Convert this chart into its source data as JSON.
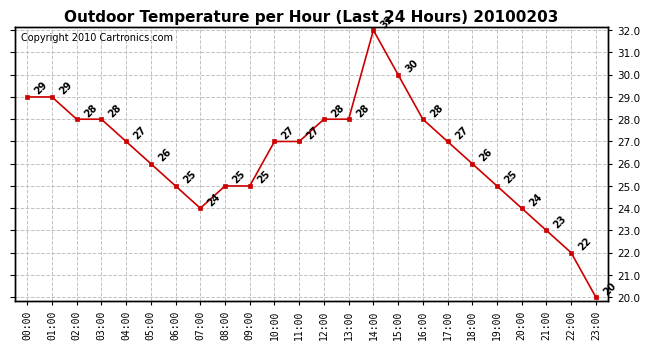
{
  "title": "Outdoor Temperature per Hour (Last 24 Hours) 20100203",
  "copyright_text": "Copyright 2010 Cartronics.com",
  "hours": [
    "00:00",
    "01:00",
    "02:00",
    "03:00",
    "04:00",
    "05:00",
    "06:00",
    "07:00",
    "08:00",
    "09:00",
    "10:00",
    "11:00",
    "12:00",
    "13:00",
    "14:00",
    "15:00",
    "16:00",
    "17:00",
    "18:00",
    "19:00",
    "20:00",
    "21:00",
    "22:00",
    "23:00"
  ],
  "temps": [
    29,
    29,
    28,
    28,
    27,
    26,
    25,
    24,
    25,
    25,
    27,
    27,
    28,
    28,
    32,
    30,
    28,
    27,
    26,
    25,
    24,
    23,
    22,
    20
  ],
  "line_color": "#cc0000",
  "marker_color": "#cc0000",
  "bg_color": "#ffffff",
  "grid_color": "#bbbbbb",
  "ylim_min": 20.0,
  "ylim_max": 32.0,
  "ytick_step": 1.0,
  "title_fontsize": 11,
  "annotation_fontsize": 7,
  "copyright_fontsize": 7
}
